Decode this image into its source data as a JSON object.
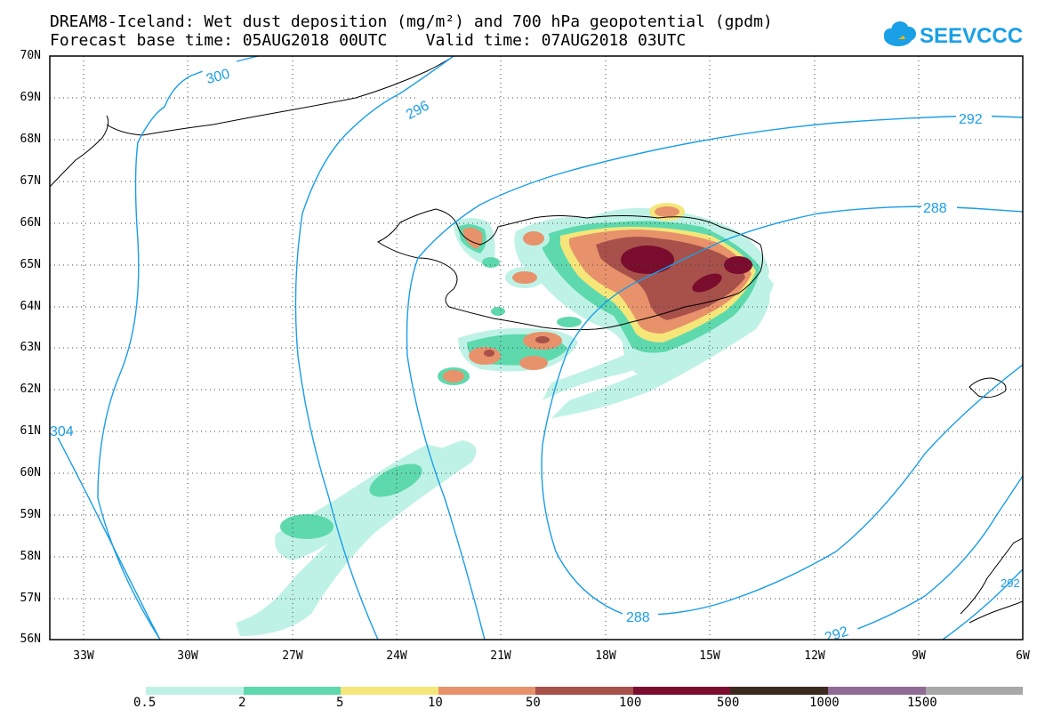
{
  "title": {
    "line1": "DREAM8-Iceland: Wet dust deposition (mg/m²) and 700 hPa geopotential (gpdm)",
    "line2": "Forecast base time: 05AUG2018 00UTC    Valid time: 07AUG2018 03UTC"
  },
  "logo": {
    "text": "SEEVCCC",
    "icon": "cloud-icon",
    "color": "#1aa0e6"
  },
  "map": {
    "lat_labels": [
      "70N",
      "69N",
      "68N",
      "67N",
      "66N",
      "65N",
      "64N",
      "63N",
      "62N",
      "61N",
      "60N",
      "59N",
      "58N",
      "57N",
      "56N"
    ],
    "lon_labels": [
      "33W",
      "30W",
      "27W",
      "24W",
      "21W",
      "18W",
      "15W",
      "12W",
      "9W",
      "6W"
    ],
    "contour_labels": [
      "300",
      "296",
      "292",
      "288",
      "288",
      "292",
      "292",
      "304"
    ],
    "contour_color": "#1a9ee6"
  },
  "legend": {
    "labels": [
      "0.5",
      "2",
      "5",
      "10",
      "50",
      "100",
      "500",
      "1000",
      "1500"
    ],
    "colors": [
      "#bff2e6",
      "#5ed9ad",
      "#f5e67a",
      "#e8926b",
      "#a8504a",
      "#7a0c2e",
      "#3d2a1f",
      "#8f6b94",
      "#a8a8a8"
    ]
  }
}
